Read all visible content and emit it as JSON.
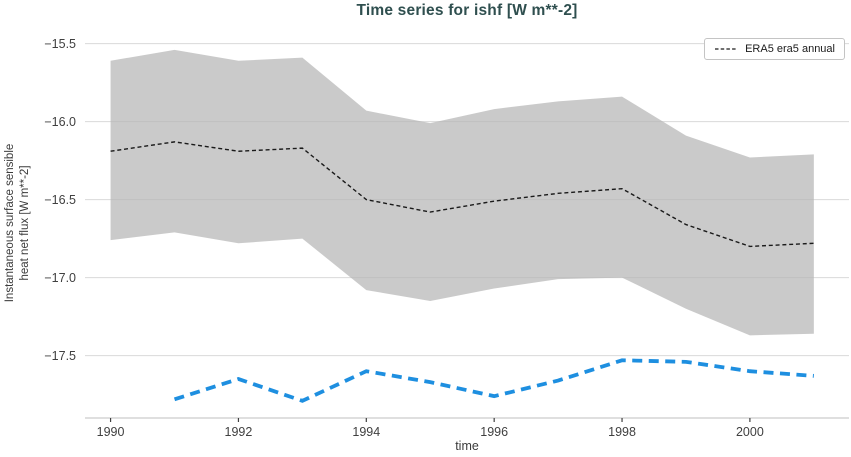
{
  "title": "Time series for ishf [W m**-2]",
  "colors": {
    "title": "#2F4F4F",
    "grid": "#d9d9d9",
    "axis_line": "#cccccc",
    "tick_mark": "#404040",
    "tick_label": "#404040"
  },
  "legend": {
    "entries": [
      {
        "label": "ERA5 era5 annual"
      }
    ]
  },
  "chart_data": {
    "type": "line",
    "title": "Time series for ishf [W m**-2]",
    "xlabel": "time",
    "ylabel": "Instantaneous surface sensible heat net flux [W m**-2]",
    "ylabel_lines": [
      "Instantaneous surface sensible",
      "heat net flux [W m**-2]"
    ],
    "grid": true,
    "legend_position": "upper right",
    "xlim": [
      1989.6,
      2001.55
    ],
    "ylim": [
      -17.9,
      -15.4
    ],
    "x_ticks": [
      1990,
      1992,
      1994,
      1996,
      1998,
      2000
    ],
    "x_tick_labels": [
      "1990",
      "1992",
      "1994",
      "1996",
      "1998",
      "2000"
    ],
    "y_ticks": [
      -15.5,
      -16.0,
      -16.5,
      -17.0,
      -17.5
    ],
    "y_tick_labels": [
      "−15.5",
      "−16.0",
      "−16.5",
      "−17.0",
      "−17.5"
    ],
    "series": [
      {
        "id": "era5-annual-line",
        "name": "ERA5 era5 annual",
        "style": "dashed",
        "color": "#1a1a1a",
        "width": 1.4,
        "dash": "4 2.8",
        "x": [
          1990,
          1991,
          1992,
          1993,
          1994,
          1995,
          1996,
          1997,
          1998,
          1999,
          2000,
          2001
        ],
        "values": [
          -16.19,
          -16.13,
          -16.19,
          -16.17,
          -16.5,
          -16.58,
          -16.51,
          -16.46,
          -16.43,
          -16.66,
          -16.8,
          -16.78
        ]
      },
      {
        "id": "blue-dashed-line",
        "name": "unlabeled blue dashed series",
        "style": "dashed",
        "color": "#1E8FE0",
        "width": 3.8,
        "dash": "10 6.5",
        "x": [
          1991,
          1992,
          1993,
          1994,
          1995,
          1996,
          1997,
          1998,
          1999,
          2000,
          2001
        ],
        "values": [
          -17.78,
          -17.65,
          -17.79,
          -17.6,
          -17.67,
          -17.76,
          -17.66,
          -17.53,
          -17.54,
          -17.6,
          -17.63
        ]
      }
    ],
    "band": {
      "id": "uncertainty-band",
      "name": "ERA5 annual spread band",
      "fill": "#b5b5b5",
      "opacity": 0.72,
      "x": [
        1990,
        1991,
        1992,
        1993,
        1994,
        1995,
        1996,
        1997,
        1998,
        1999,
        2000,
        2001
      ],
      "upper": [
        -15.61,
        -15.54,
        -15.61,
        -15.59,
        -15.93,
        -16.01,
        -15.92,
        -15.87,
        -15.84,
        -16.09,
        -16.23,
        -16.21
      ],
      "lower": [
        -16.76,
        -16.71,
        -16.78,
        -16.75,
        -17.08,
        -17.15,
        -17.07,
        -17.01,
        -17.0,
        -17.2,
        -17.37,
        -17.36
      ]
    }
  }
}
